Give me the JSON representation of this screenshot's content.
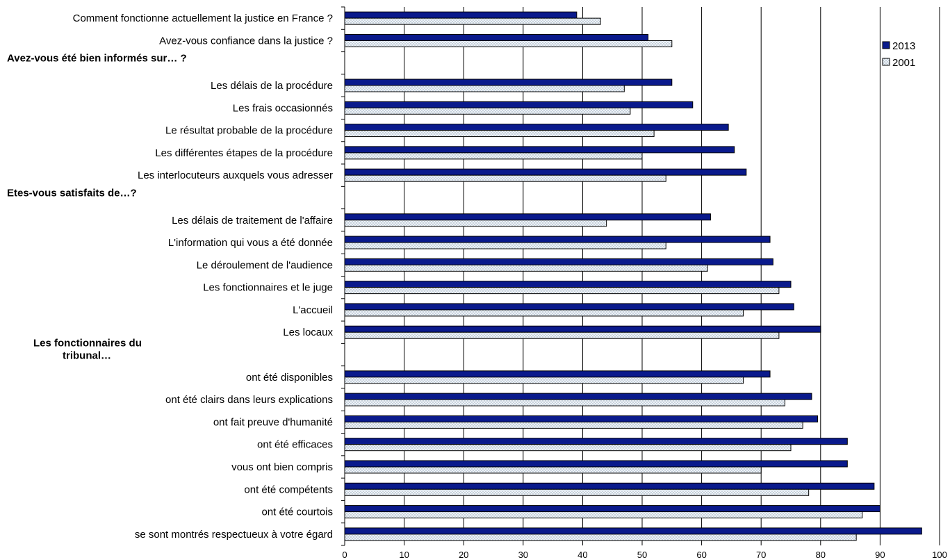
{
  "chart_data": {
    "type": "bar",
    "orientation": "horizontal",
    "xlim": [
      0,
      100
    ],
    "xticks": [
      0,
      10,
      20,
      30,
      40,
      50,
      60,
      70,
      80,
      90,
      100
    ],
    "grid": true,
    "legend_position": "top-right",
    "series": [
      {
        "name": "2013",
        "color": "#0a1a8c"
      },
      {
        "name": "2001",
        "color": "#dfe6ee"
      }
    ],
    "rows": [
      {
        "kind": "item",
        "label": "Comment fonctionne actuellement la justice en France ?",
        "v2013": 39,
        "v2001": 43
      },
      {
        "kind": "item",
        "label": "Avez-vous confiance dans la justice ?",
        "v2013": 51,
        "v2001": 55
      },
      {
        "kind": "group",
        "label": "Avez-vous été bien informés sur… ?"
      },
      {
        "kind": "item",
        "label": "Les délais de la procédure",
        "v2013": 55,
        "v2001": 47
      },
      {
        "kind": "item",
        "label": "Les frais occasionnés",
        "v2013": 58.5,
        "v2001": 48
      },
      {
        "kind": "item",
        "label": "Le résultat probable de la procédure",
        "v2013": 64.5,
        "v2001": 52
      },
      {
        "kind": "item",
        "label": "Les différentes étapes de la procédure",
        "v2013": 65.5,
        "v2001": 50
      },
      {
        "kind": "item",
        "label": "Les interlocuteurs auxquels vous adresser",
        "v2013": 67.5,
        "v2001": 54
      },
      {
        "kind": "group",
        "label": "Etes-vous satisfaits de…?"
      },
      {
        "kind": "item",
        "label": "Les délais de traitement de l'affaire",
        "v2013": 61.5,
        "v2001": 44
      },
      {
        "kind": "item",
        "label": "L'information qui vous a été donnée",
        "v2013": 71.5,
        "v2001": 54
      },
      {
        "kind": "item",
        "label": "Le déroulement de l'audience",
        "v2013": 72,
        "v2001": 61
      },
      {
        "kind": "item",
        "label": "Les fonctionnaires et le juge",
        "v2013": 75,
        "v2001": 73
      },
      {
        "kind": "item",
        "label": "L'accueil",
        "v2013": 75.5,
        "v2001": 67
      },
      {
        "kind": "item",
        "label": "Les locaux",
        "v2013": 80,
        "v2001": 73
      },
      {
        "kind": "group",
        "label": "Les fonctionnaires du tribunal…",
        "lines": [
          "Les fonctionnaires du",
          "tribunal…"
        ]
      },
      {
        "kind": "item",
        "label": "ont été disponibles",
        "v2013": 71.5,
        "v2001": 67
      },
      {
        "kind": "item",
        "label": "ont été clairs dans leurs explications",
        "v2013": 78.5,
        "v2001": 74
      },
      {
        "kind": "item",
        "label": "ont fait preuve d'humanité",
        "v2013": 79.5,
        "v2001": 77
      },
      {
        "kind": "item",
        "label": "ont été efficaces",
        "v2013": 84.5,
        "v2001": 75
      },
      {
        "kind": "item",
        "label": "vous ont bien compris",
        "v2013": 84.5,
        "v2001": 70
      },
      {
        "kind": "item",
        "label": "ont été compétents",
        "v2013": 89,
        "v2001": 78
      },
      {
        "kind": "item",
        "label": "ont été courtois",
        "v2013": 90,
        "v2001": 87
      },
      {
        "kind": "item",
        "label": "se sont montrés respectueux à votre égard",
        "v2013": 97,
        "v2001": 86
      }
    ]
  }
}
